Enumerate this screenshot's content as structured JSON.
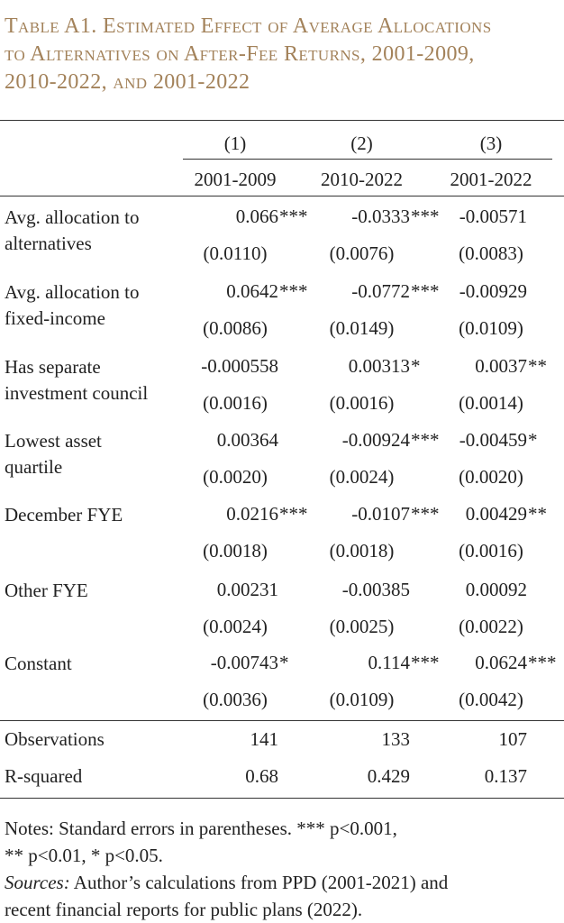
{
  "title": "Table A1. Estimated Effect of Average Allocations to Alternatives on After-Fee Returns, 2001-2009, 2010-2022, and 2001-2022",
  "title_lines": [
    "Table A1. Estimated Effect of Average Allocations",
    "to Alternatives on After-Fee Returns, 2001-2009,",
    "2010-2022, and 2001-2022"
  ],
  "columns": [
    {
      "number": "(1)",
      "period": "2001-2009"
    },
    {
      "number": "(2)",
      "period": "2010-2022"
    },
    {
      "number": "(3)",
      "period": "2001-2022"
    }
  ],
  "rows": [
    {
      "label_lines": [
        "Avg. allocation to",
        "alternatives"
      ],
      "coef": [
        {
          "v": "0.066",
          "s": "***"
        },
        {
          "v": "-0.0333",
          "s": "***"
        },
        {
          "v": "-0.00571",
          "s": ""
        }
      ],
      "se": [
        "(0.0110)",
        "(0.0076)",
        "(0.0083)"
      ]
    },
    {
      "label_lines": [
        "Avg. allocation to",
        "fixed-income"
      ],
      "coef": [
        {
          "v": "0.0642",
          "s": "***"
        },
        {
          "v": "-0.0772",
          "s": "***"
        },
        {
          "v": "-0.00929",
          "s": ""
        }
      ],
      "se": [
        "(0.0086)",
        "(0.0149)",
        "(0.0109)"
      ]
    },
    {
      "label_lines": [
        "Has separate",
        "investment council"
      ],
      "coef": [
        {
          "v": "-0.000558",
          "s": ""
        },
        {
          "v": "0.00313",
          "s": "*"
        },
        {
          "v": "0.0037",
          "s": "**"
        }
      ],
      "se": [
        "(0.0016)",
        "(0.0016)",
        "(0.0014)"
      ]
    },
    {
      "label_lines": [
        "Lowest asset",
        "quartile"
      ],
      "coef": [
        {
          "v": "0.00364",
          "s": ""
        },
        {
          "v": "-0.00924",
          "s": "***"
        },
        {
          "v": "-0.00459",
          "s": "*"
        }
      ],
      "se": [
        "(0.0020)",
        "(0.0024)",
        "(0.0020)"
      ]
    },
    {
      "label_lines": [
        "December FYE"
      ],
      "coef": [
        {
          "v": "0.0216",
          "s": "***"
        },
        {
          "v": "-0.0107",
          "s": "***"
        },
        {
          "v": "0.00429",
          "s": "**"
        }
      ],
      "se": [
        "(0.0018)",
        "(0.0018)",
        "(0.0016)"
      ]
    },
    {
      "label_lines": [
        "Other FYE"
      ],
      "coef": [
        {
          "v": "0.00231",
          "s": ""
        },
        {
          "v": "-0.00385",
          "s": ""
        },
        {
          "v": "0.00092",
          "s": ""
        }
      ],
      "se": [
        "(0.0024)",
        "(0.0025)",
        "(0.0022)"
      ]
    },
    {
      "label_lines": [
        "Constant"
      ],
      "coef": [
        {
          "v": "-0.00743",
          "s": "*"
        },
        {
          "v": "0.114",
          "s": "***"
        },
        {
          "v": "0.0624",
          "s": "***"
        }
      ],
      "se": [
        "(0.0036)",
        "(0.0109)",
        "(0.0042)"
      ]
    }
  ],
  "stats": [
    {
      "label": "Observations",
      "values": [
        "141",
        "133",
        "107"
      ]
    },
    {
      "label": "R-squared",
      "values": [
        "0.68",
        "0.429",
        "0.137"
      ]
    }
  ],
  "notes": {
    "line1": "Notes: Standard errors in parentheses.  *** p<0.001,",
    "line2": "** p<0.01, * p<0.05.",
    "sources_label": "Sources:",
    "sources_text_line1": " Author’s calculations from PPD (2001-2021) and",
    "sources_text_line2": "recent financial reports for public plans (2022)."
  },
  "colors": {
    "title": "#a3825a",
    "text": "#222222",
    "rule": "#333333"
  }
}
